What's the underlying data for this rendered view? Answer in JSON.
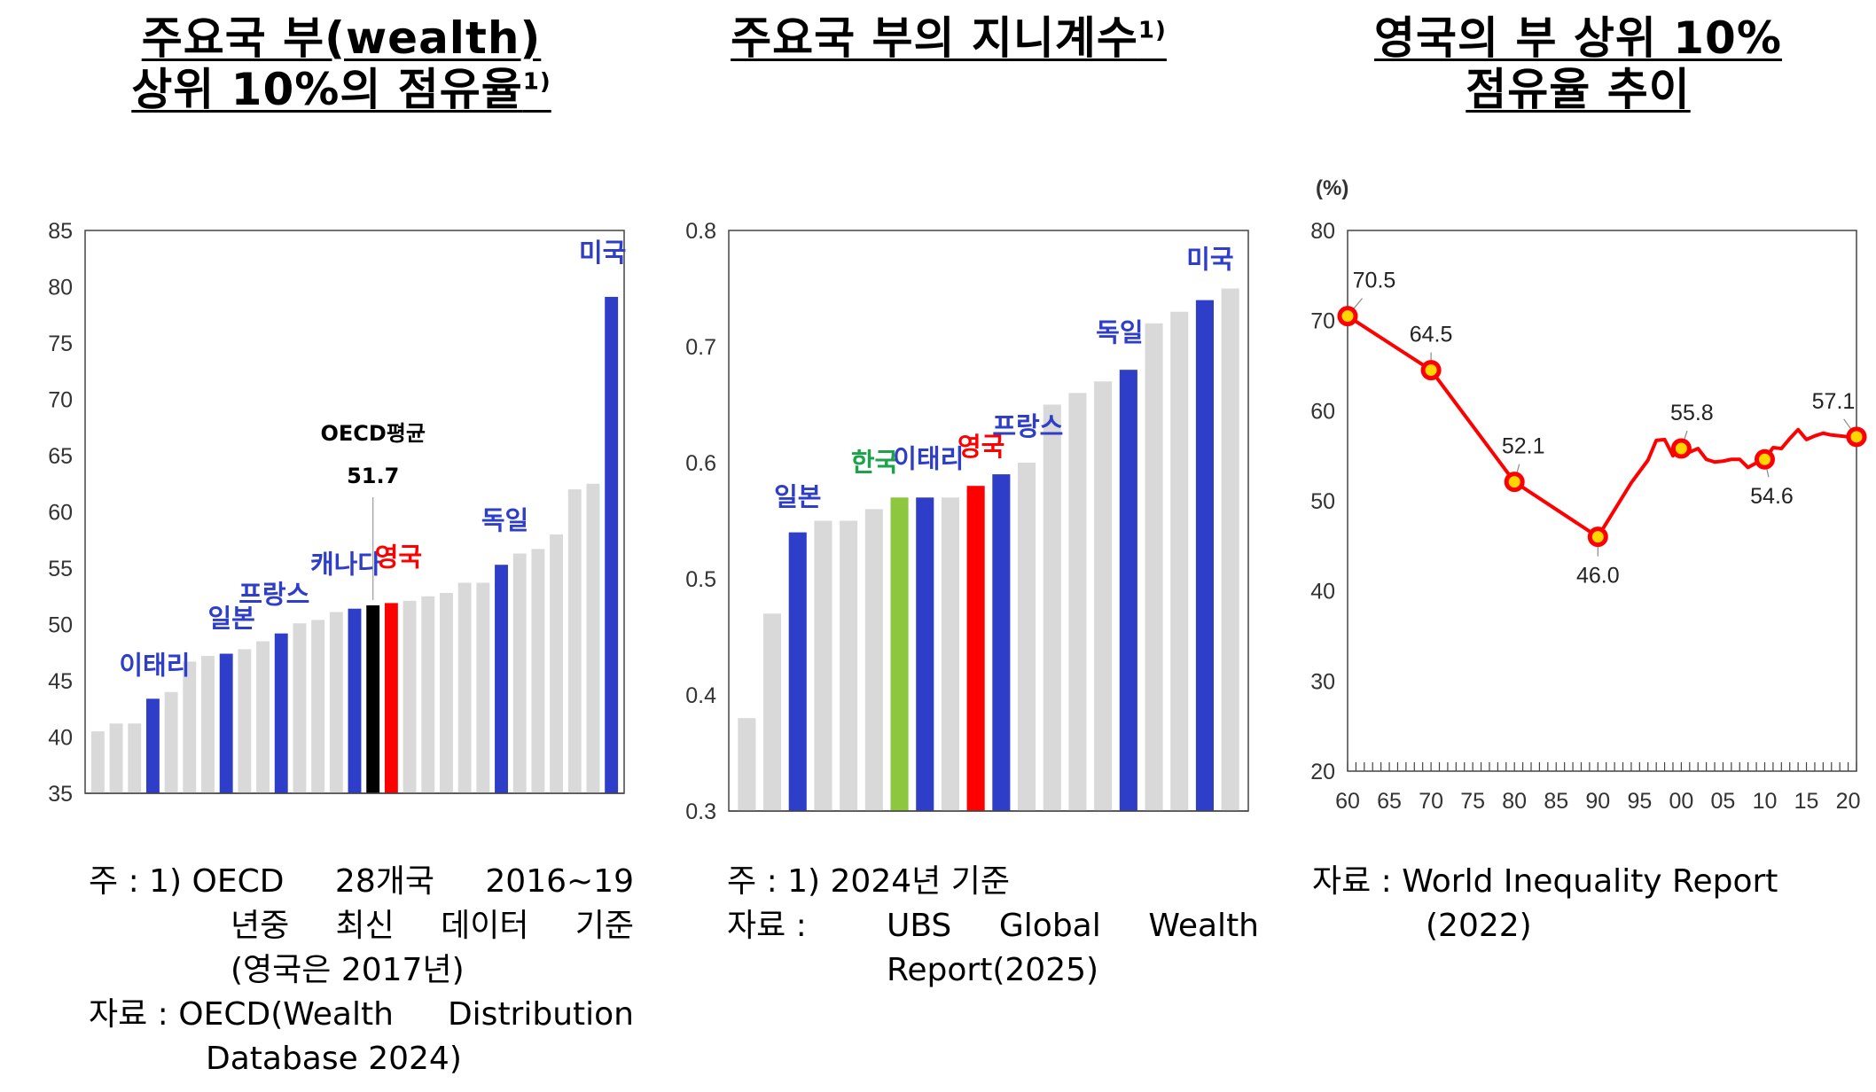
{
  "titles": {
    "p1": {
      "line1": "주요국 부(wealth)",
      "line2": "상위 10%의 점유율",
      "sup": "1)"
    },
    "p2": {
      "line1": "주요국 부의 지니계수",
      "sup": "1)"
    },
    "p3": {
      "line1": "영국의 부 상위 10%",
      "line2": "점유율 추이"
    }
  },
  "colors": {
    "grey": "#d9d9d9",
    "blue": "#2e3ec9",
    "red": "#ff0000",
    "black": "#000000",
    "green": "#8dc63f",
    "line": "#ff0000",
    "marker": "#ffd700"
  },
  "chart_data": [
    {
      "type": "bar",
      "title": "주요국 부(wealth) 상위 10%의 점유율1)",
      "ylim": [
        35,
        85
      ],
      "yticks": [
        35,
        40,
        45,
        50,
        55,
        60,
        65,
        70,
        75,
        80,
        85
      ],
      "values": [
        40.5,
        41.2,
        41.2,
        43.4,
        44.0,
        46.7,
        47.2,
        47.4,
        47.8,
        48.5,
        49.2,
        50.1,
        50.4,
        51.1,
        51.4,
        51.7,
        51.9,
        52.1,
        52.5,
        52.8,
        53.7,
        53.7,
        55.3,
        56.3,
        56.7,
        58.0,
        62.0,
        62.5,
        79.1
      ],
      "highlight": [
        {
          "index": 3,
          "label": "이태리",
          "color": "blue"
        },
        {
          "index": 7,
          "label": "일본",
          "color": "blue"
        },
        {
          "index": 10,
          "label": "프랑스",
          "color": "blue"
        },
        {
          "index": 14,
          "label": "캐나다",
          "color": "blue"
        },
        {
          "index": 15,
          "label": "OECD평균",
          "color": "black",
          "value_label": "51.7"
        },
        {
          "index": 16,
          "label": "영국",
          "color": "red"
        },
        {
          "index": 22,
          "label": "독일",
          "color": "blue"
        },
        {
          "index": 28,
          "label": "미국",
          "color": "blue"
        }
      ]
    },
    {
      "type": "bar",
      "title": "주요국 부의 지니계수1)",
      "ylim": [
        0.3,
        0.8
      ],
      "yticks": [
        "0.3",
        "0.4",
        "0.5",
        "0.6",
        "0.7",
        "0.8"
      ],
      "values": [
        0.38,
        0.47,
        0.54,
        0.55,
        0.55,
        0.56,
        0.57,
        0.57,
        0.57,
        0.58,
        0.59,
        0.6,
        0.65,
        0.66,
        0.67,
        0.68,
        0.72,
        0.73,
        0.74,
        0.75
      ],
      "highlight": [
        {
          "index": 2,
          "label": "일본",
          "color": "blue"
        },
        {
          "index": 6,
          "label": "한국",
          "color": "green"
        },
        {
          "index": 7,
          "label": "이태리",
          "color": "blue"
        },
        {
          "index": 9,
          "label": "영국",
          "color": "red"
        },
        {
          "index": 10,
          "label": "프랑스",
          "color": "blue"
        },
        {
          "index": 15,
          "label": "독일",
          "color": "blue"
        },
        {
          "index": 18,
          "label": "미국",
          "color": "blue"
        }
      ]
    },
    {
      "type": "line",
      "title": "영국의 부 상위 10% 점유율 추이",
      "ylabel": "(%)",
      "ylim": [
        20,
        80
      ],
      "yticks": [
        20,
        30,
        40,
        50,
        60,
        70,
        80
      ],
      "xlim": [
        1960,
        2021
      ],
      "xticks": [
        "60",
        "65",
        "70",
        "75",
        "80",
        "85",
        "90",
        "95",
        "00",
        "05",
        "10",
        "15",
        "20"
      ],
      "x": [
        1960,
        1970,
        1980,
        1990,
        1994,
        1996,
        1997,
        1998,
        1999,
        2000,
        2001,
        2002,
        2003,
        2004,
        2005,
        2006,
        2007,
        2008,
        2009,
        2010,
        2011,
        2012,
        2013,
        2014,
        2015,
        2016,
        2017,
        2018,
        2019,
        2020,
        2021
      ],
      "y": [
        70.5,
        64.5,
        52.1,
        46.0,
        52.0,
        54.5,
        56.7,
        56.8,
        55.0,
        55.8,
        55.4,
        55.8,
        54.6,
        54.3,
        54.4,
        54.6,
        54.6,
        53.7,
        54.2,
        54.6,
        55.9,
        55.8,
        56.9,
        57.9,
        56.8,
        57.2,
        57.5,
        57.3,
        57.2,
        57.1,
        57.1
      ],
      "point_labels": [
        {
          "x": 1960,
          "y": 70.5,
          "text": "70.5"
        },
        {
          "x": 1970,
          "y": 64.5,
          "text": "64.5"
        },
        {
          "x": 1980,
          "y": 52.1,
          "text": "52.1"
        },
        {
          "x": 1990,
          "y": 46.0,
          "text": "46.0"
        },
        {
          "x": 2000,
          "y": 55.8,
          "text": "55.8"
        },
        {
          "x": 2010,
          "y": 54.6,
          "text": "54.6"
        },
        {
          "x": 2021,
          "y": 57.1,
          "text": "57.1"
        }
      ]
    }
  ],
  "notes": {
    "p1": {
      "n1_head": "주 : 1) ",
      "n1_body1": "OECD 28개국 2016~19",
      "n1_body2": "년중 최신 데이터 기준",
      "n1_body3": "(영국은 2017년)",
      "src_head": "자료 : ",
      "src_body1": "OECD(Wealth Distribution",
      "src_body2": "Database 2024)"
    },
    "p2": {
      "n1_head": "주 : 1) ",
      "n1_body1": "2024년 기준",
      "src_head": "자료 : ",
      "src_body1": "UBS Global Wealth",
      "src_body2": "Report(2025)"
    },
    "p3": {
      "src_head": "자료 : ",
      "src_body1": "World Inequality Report",
      "src_body2": "(2022)"
    }
  }
}
